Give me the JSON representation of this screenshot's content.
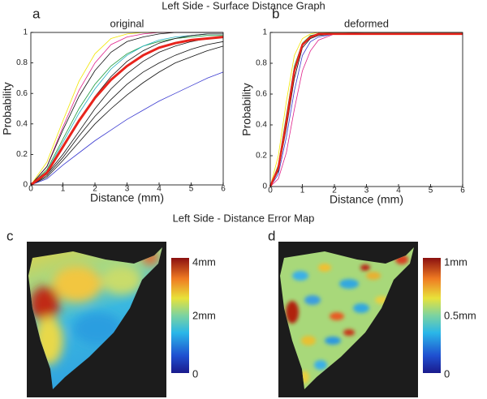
{
  "figure": {
    "title": "Left Side - Surface Distance Graph",
    "map_title": "Left Side - Distance Error Map",
    "maps": [
      {
        "panel": "c",
        "colorbar_labels": [
          "4mm",
          "2mm",
          "0"
        ]
      },
      {
        "panel": "d",
        "colorbar_labels": [
          "1mm",
          "0.5mm",
          "0"
        ]
      }
    ]
  },
  "chart_data": [
    {
      "type": "line",
      "panel": "a",
      "title": "original",
      "x_label": "Distance (mm)",
      "y_label": "Probability",
      "x": [
        0,
        0.5,
        1,
        1.5,
        2,
        2.5,
        3,
        3.5,
        4,
        4.5,
        5,
        5.5,
        6
      ],
      "xlim": [
        0,
        6
      ],
      "ylim": [
        0,
        1
      ],
      "xticks": [
        0,
        1,
        2,
        3,
        4,
        5,
        6
      ],
      "yticks": [
        0,
        0.2,
        0.4,
        0.6,
        0.8,
        1
      ],
      "series": [
        {
          "color": "#f2e600",
          "values": [
            0,
            0.15,
            0.42,
            0.68,
            0.86,
            0.96,
            0.99,
            1,
            1,
            1,
            1,
            1,
            1
          ]
        },
        {
          "color": "#e0208a",
          "values": [
            0,
            0.12,
            0.38,
            0.62,
            0.8,
            0.92,
            0.97,
            0.99,
            1,
            1,
            1,
            1,
            1
          ]
        },
        {
          "color": "#3a3ad0",
          "values": [
            0,
            0.04,
            0.13,
            0.21,
            0.29,
            0.36,
            0.43,
            0.49,
            0.55,
            0.6,
            0.65,
            0.7,
            0.74
          ]
        },
        {
          "color": "#1a9a3a",
          "values": [
            0,
            0.1,
            0.3,
            0.5,
            0.66,
            0.78,
            0.86,
            0.91,
            0.94,
            0.96,
            0.97,
            0.98,
            0.98
          ]
        },
        {
          "color": "#20b0c0",
          "values": [
            0,
            0.09,
            0.28,
            0.47,
            0.63,
            0.76,
            0.85,
            0.91,
            0.95,
            0.97,
            0.98,
            0.99,
            0.99
          ]
        },
        {
          "color": "#111111",
          "values": [
            0,
            0.12,
            0.36,
            0.58,
            0.75,
            0.87,
            0.94,
            0.97,
            0.99,
            1,
            1,
            1,
            1
          ]
        },
        {
          "color": "#111111",
          "values": [
            0,
            0.06,
            0.18,
            0.32,
            0.45,
            0.56,
            0.66,
            0.74,
            0.8,
            0.85,
            0.89,
            0.92,
            0.94
          ]
        },
        {
          "color": "#111111",
          "values": [
            0,
            0.05,
            0.16,
            0.28,
            0.4,
            0.5,
            0.59,
            0.67,
            0.74,
            0.8,
            0.84,
            0.88,
            0.91
          ]
        },
        {
          "color": "#111111",
          "values": [
            0,
            0.08,
            0.24,
            0.42,
            0.58,
            0.71,
            0.81,
            0.88,
            0.93,
            0.96,
            0.98,
            0.99,
            0.99
          ]
        },
        {
          "color": "#111111",
          "values": [
            0,
            0.07,
            0.2,
            0.35,
            0.5,
            0.63,
            0.73,
            0.81,
            0.87,
            0.91,
            0.94,
            0.96,
            0.97
          ]
        },
        {
          "color": "#e8241c",
          "linewidth": 3,
          "values": [
            0,
            0.08,
            0.25,
            0.42,
            0.57,
            0.69,
            0.78,
            0.85,
            0.9,
            0.93,
            0.95,
            0.96,
            0.97
          ]
        }
      ]
    },
    {
      "type": "line",
      "panel": "b",
      "title": "deformed",
      "x_label": "Distance (mm)",
      "y_label": "Probability",
      "x": [
        0,
        0.25,
        0.5,
        0.75,
        1,
        1.25,
        1.5,
        2,
        3,
        4,
        5,
        6
      ],
      "xlim": [
        0,
        6
      ],
      "ylim": [
        0,
        1
      ],
      "xticks": [
        0,
        1,
        2,
        3,
        4,
        5,
        6
      ],
      "yticks": [
        0,
        0.2,
        0.4,
        0.6,
        0.8,
        1
      ],
      "series": [
        {
          "color": "#f2e600",
          "values": [
            0,
            0.2,
            0.55,
            0.85,
            0.96,
            0.99,
            1,
            1,
            1,
            1,
            1,
            1
          ]
        },
        {
          "color": "#e0208a",
          "values": [
            0,
            0.05,
            0.22,
            0.5,
            0.75,
            0.88,
            0.95,
            0.99,
            1,
            1,
            1,
            1
          ]
        },
        {
          "color": "#1a9a3a",
          "values": [
            0,
            0.14,
            0.46,
            0.78,
            0.93,
            0.98,
            0.99,
            1,
            1,
            1,
            1,
            1
          ]
        },
        {
          "color": "#3a3ad0",
          "values": [
            0,
            0.08,
            0.32,
            0.62,
            0.85,
            0.94,
            0.97,
            0.99,
            0.99,
            0.99,
            0.99,
            0.99
          ]
        },
        {
          "color": "#111111",
          "values": [
            0,
            0.1,
            0.38,
            0.7,
            0.9,
            0.96,
            0.98,
            0.99,
            0.99,
            0.99,
            0.99,
            0.99
          ]
        },
        {
          "color": "#e8241c",
          "linewidth": 2.5,
          "values": [
            0,
            0.12,
            0.42,
            0.75,
            0.92,
            0.97,
            0.99,
            0.99,
            0.99,
            0.99,
            0.99,
            0.99
          ]
        }
      ]
    }
  ]
}
